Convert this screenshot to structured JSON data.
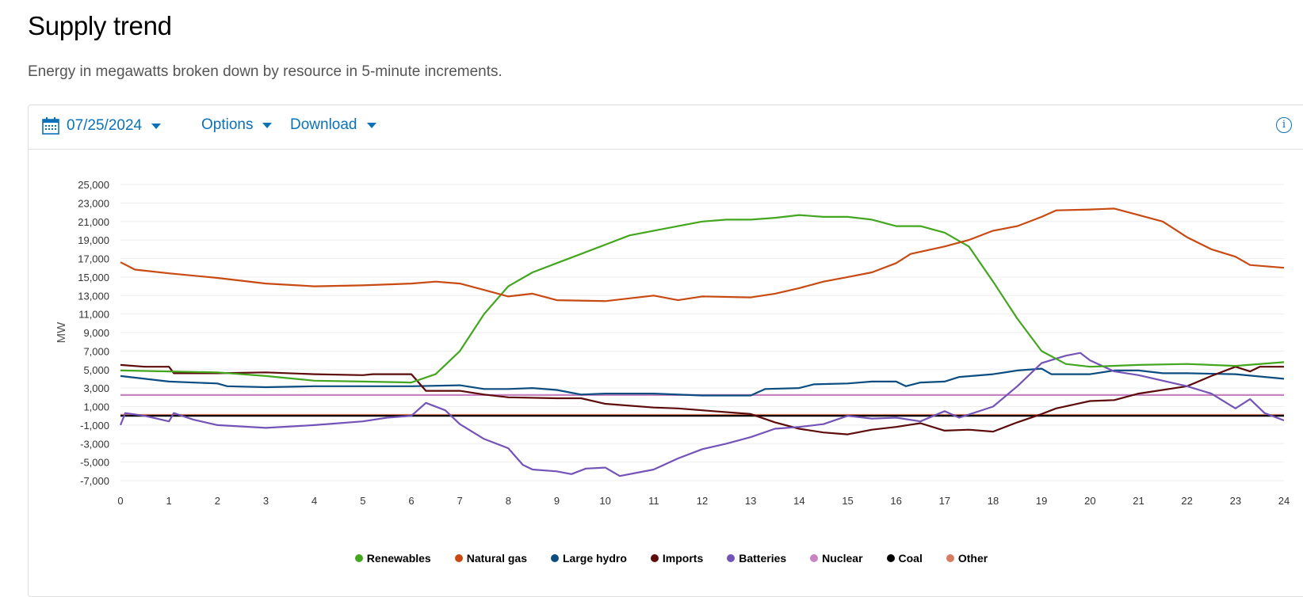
{
  "header": {
    "title": "Supply trend",
    "subtitle": "Energy in megawatts broken down by resource in 5-minute increments."
  },
  "toolbar": {
    "date": "07/25/2024",
    "options_label": "Options",
    "download_label": "Download",
    "info_icon": "info-icon",
    "calendar_icon": "calendar-icon"
  },
  "accent": "#0b72b9",
  "chart_data": {
    "type": "line",
    "title": "Supply trend",
    "xlabel": "",
    "ylabel": "MW",
    "xlim": [
      0,
      24
    ],
    "ylim": [
      -7000,
      25000
    ],
    "xticks": [
      0,
      1,
      2,
      3,
      4,
      5,
      6,
      7,
      8,
      9,
      10,
      11,
      12,
      13,
      14,
      15,
      16,
      17,
      18,
      19,
      20,
      21,
      22,
      23,
      24
    ],
    "yticks": [
      -7000,
      -5000,
      -3000,
      -1000,
      1000,
      3000,
      5000,
      7000,
      9000,
      11000,
      13000,
      15000,
      17000,
      19000,
      21000,
      23000,
      25000
    ],
    "ytick_labels": [
      "-7,000",
      "-5,000",
      "-3,000",
      "-1,000",
      "1,000",
      "3,000",
      "5,000",
      "7,000",
      "9,000",
      "11,000",
      "13,000",
      "15,000",
      "17,000",
      "19,000",
      "21,000",
      "23,000",
      "25,000"
    ],
    "grid": true,
    "legend_position": "bottom",
    "series": [
      {
        "name": "Renewables",
        "color": "#43a61f",
        "points": [
          [
            0,
            4900
          ],
          [
            1,
            4800
          ],
          [
            2,
            4700
          ],
          [
            3,
            4300
          ],
          [
            4,
            3800
          ],
          [
            5,
            3700
          ],
          [
            6,
            3600
          ],
          [
            6.5,
            4500
          ],
          [
            7,
            7000
          ],
          [
            7.5,
            11000
          ],
          [
            8,
            14000
          ],
          [
            8.5,
            15500
          ],
          [
            9,
            16500
          ],
          [
            9.5,
            17500
          ],
          [
            10,
            18500
          ],
          [
            10.5,
            19500
          ],
          [
            11,
            20000
          ],
          [
            11.5,
            20500
          ],
          [
            12,
            21000
          ],
          [
            12.5,
            21200
          ],
          [
            13,
            21200
          ],
          [
            13.5,
            21400
          ],
          [
            14,
            21700
          ],
          [
            14.5,
            21500
          ],
          [
            15,
            21500
          ],
          [
            15.5,
            21200
          ],
          [
            16,
            20500
          ],
          [
            16.5,
            20500
          ],
          [
            17,
            19800
          ],
          [
            17.5,
            18300
          ],
          [
            18,
            14500
          ],
          [
            18.5,
            10500
          ],
          [
            19,
            7000
          ],
          [
            19.5,
            5600
          ],
          [
            20,
            5300
          ],
          [
            21,
            5500
          ],
          [
            22,
            5600
          ],
          [
            23,
            5400
          ],
          [
            24,
            5800
          ]
        ]
      },
      {
        "name": "Natural gas",
        "color": "#c84a12",
        "points": [
          [
            0,
            16600
          ],
          [
            0.3,
            15800
          ],
          [
            1,
            15400
          ],
          [
            2,
            14900
          ],
          [
            3,
            14300
          ],
          [
            4,
            14000
          ],
          [
            5,
            14100
          ],
          [
            6,
            14300
          ],
          [
            6.5,
            14500
          ],
          [
            7,
            14300
          ],
          [
            7.5,
            13600
          ],
          [
            8,
            12900
          ],
          [
            8.5,
            13200
          ],
          [
            9,
            12500
          ],
          [
            10,
            12400
          ],
          [
            10.5,
            12700
          ],
          [
            11,
            13000
          ],
          [
            11.5,
            12500
          ],
          [
            12,
            12900
          ],
          [
            13,
            12800
          ],
          [
            13.5,
            13200
          ],
          [
            14,
            13800
          ],
          [
            14.5,
            14500
          ],
          [
            15,
            15000
          ],
          [
            15.5,
            15500
          ],
          [
            16,
            16500
          ],
          [
            16.3,
            17500
          ],
          [
            17,
            18300
          ],
          [
            17.5,
            19000
          ],
          [
            18,
            20000
          ],
          [
            18.5,
            20500
          ],
          [
            19,
            21500
          ],
          [
            19.3,
            22200
          ],
          [
            20,
            22300
          ],
          [
            20.5,
            22400
          ],
          [
            21,
            21700
          ],
          [
            21.5,
            21000
          ],
          [
            22,
            19300
          ],
          [
            22.5,
            18000
          ],
          [
            23,
            17200
          ],
          [
            23.3,
            16300
          ],
          [
            24,
            16000
          ]
        ]
      },
      {
        "name": "Large hydro",
        "color": "#0b4d80",
        "points": [
          [
            0,
            4300
          ],
          [
            1,
            3700
          ],
          [
            2,
            3500
          ],
          [
            2.2,
            3200
          ],
          [
            3,
            3100
          ],
          [
            4,
            3200
          ],
          [
            5,
            3200
          ],
          [
            6,
            3200
          ],
          [
            7,
            3300
          ],
          [
            7.5,
            2900
          ],
          [
            8,
            2900
          ],
          [
            8.5,
            3000
          ],
          [
            9,
            2800
          ],
          [
            9.5,
            2300
          ],
          [
            10,
            2400
          ],
          [
            11,
            2400
          ],
          [
            12,
            2200
          ],
          [
            13,
            2200
          ],
          [
            13.3,
            2900
          ],
          [
            14,
            3000
          ],
          [
            14.3,
            3400
          ],
          [
            15,
            3500
          ],
          [
            15.5,
            3700
          ],
          [
            16,
            3700
          ],
          [
            16.2,
            3200
          ],
          [
            16.5,
            3600
          ],
          [
            17,
            3700
          ],
          [
            17.3,
            4200
          ],
          [
            18,
            4500
          ],
          [
            18.5,
            4900
          ],
          [
            19,
            5100
          ],
          [
            19.2,
            4500
          ],
          [
            20,
            4500
          ],
          [
            20.5,
            4900
          ],
          [
            21,
            4900
          ],
          [
            21.5,
            4600
          ],
          [
            22,
            4600
          ],
          [
            23,
            4500
          ],
          [
            24,
            4000
          ]
        ]
      },
      {
        "name": "Imports",
        "color": "#5c0a0a",
        "points": [
          [
            0,
            5500
          ],
          [
            0.5,
            5300
          ],
          [
            1,
            5300
          ],
          [
            1.1,
            4600
          ],
          [
            2,
            4600
          ],
          [
            3,
            4700
          ],
          [
            4,
            4500
          ],
          [
            5,
            4400
          ],
          [
            5.2,
            4500
          ],
          [
            6,
            4500
          ],
          [
            6.3,
            2700
          ],
          [
            7,
            2700
          ],
          [
            7.5,
            2300
          ],
          [
            8,
            2000
          ],
          [
            9,
            1900
          ],
          [
            9.5,
            1900
          ],
          [
            10,
            1300
          ],
          [
            11,
            900
          ],
          [
            11.5,
            800
          ],
          [
            12,
            600
          ],
          [
            13,
            200
          ],
          [
            13.5,
            -700
          ],
          [
            14,
            -1400
          ],
          [
            14.5,
            -1800
          ],
          [
            15,
            -2000
          ],
          [
            15.5,
            -1500
          ],
          [
            16,
            -1200
          ],
          [
            16.5,
            -800
          ],
          [
            17,
            -1600
          ],
          [
            17.5,
            -1500
          ],
          [
            18,
            -1700
          ],
          [
            18.5,
            -700
          ],
          [
            19,
            200
          ],
          [
            19.3,
            800
          ],
          [
            20,
            1600
          ],
          [
            20.5,
            1700
          ],
          [
            21,
            2400
          ],
          [
            22,
            3200
          ],
          [
            22.5,
            4300
          ],
          [
            23,
            5300
          ],
          [
            23.3,
            4800
          ],
          [
            23.5,
            5300
          ],
          [
            24,
            5300
          ]
        ]
      },
      {
        "name": "Batteries",
        "color": "#7453b8",
        "points": [
          [
            0,
            -1000
          ],
          [
            0.1,
            300
          ],
          [
            0.5,
            0
          ],
          [
            1,
            -600
          ],
          [
            1.1,
            300
          ],
          [
            1.5,
            -400
          ],
          [
            2,
            -1000
          ],
          [
            3,
            -1300
          ],
          [
            4,
            -1000
          ],
          [
            5,
            -600
          ],
          [
            5.5,
            -200
          ],
          [
            6,
            0
          ],
          [
            6.3,
            1400
          ],
          [
            6.7,
            600
          ],
          [
            7,
            -900
          ],
          [
            7.5,
            -2500
          ],
          [
            8,
            -3500
          ],
          [
            8.3,
            -5300
          ],
          [
            8.5,
            -5800
          ],
          [
            9,
            -6000
          ],
          [
            9.3,
            -6300
          ],
          [
            9.6,
            -5700
          ],
          [
            10,
            -5600
          ],
          [
            10.3,
            -6500
          ],
          [
            11,
            -5800
          ],
          [
            11.5,
            -4600
          ],
          [
            12,
            -3600
          ],
          [
            12.5,
            -3000
          ],
          [
            13,
            -2300
          ],
          [
            13.5,
            -1400
          ],
          [
            14,
            -1200
          ],
          [
            14.5,
            -900
          ],
          [
            15,
            0
          ],
          [
            15.5,
            -300
          ],
          [
            16,
            -200
          ],
          [
            16.5,
            -600
          ],
          [
            17,
            500
          ],
          [
            17.3,
            -200
          ],
          [
            18,
            1000
          ],
          [
            18.5,
            3200
          ],
          [
            19,
            5700
          ],
          [
            19.5,
            6500
          ],
          [
            19.8,
            6800
          ],
          [
            20,
            6000
          ],
          [
            20.5,
            4800
          ],
          [
            21,
            4400
          ],
          [
            22,
            3200
          ],
          [
            22.5,
            2400
          ],
          [
            23,
            800
          ],
          [
            23.3,
            1800
          ],
          [
            23.6,
            300
          ],
          [
            24,
            -500
          ]
        ]
      },
      {
        "name": "Nuclear",
        "color": "#c884c0",
        "points": [
          [
            0,
            2250
          ],
          [
            24,
            2250
          ]
        ]
      },
      {
        "name": "Coal",
        "color": "#000000",
        "points": [
          [
            0,
            0
          ],
          [
            24,
            0
          ]
        ]
      },
      {
        "name": "Other",
        "color": "#d67c63",
        "points": [
          [
            0,
            100
          ],
          [
            24,
            100
          ]
        ]
      }
    ]
  }
}
